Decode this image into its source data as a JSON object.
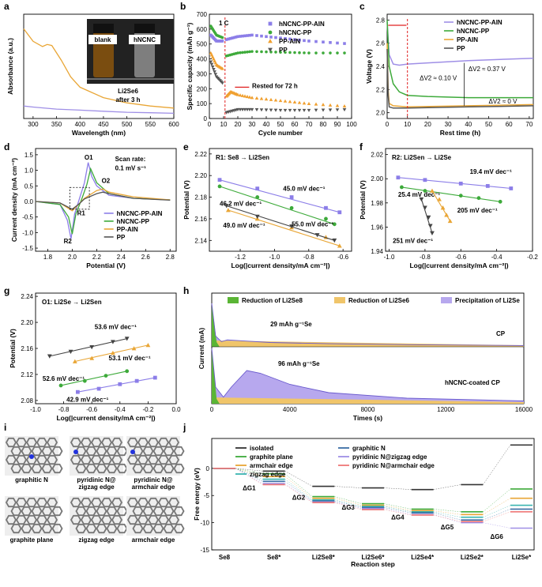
{
  "panel_labels": [
    "a",
    "b",
    "c",
    "d",
    "e",
    "f",
    "g",
    "h",
    "i",
    "j"
  ],
  "chart_data": [
    {
      "panel": "a",
      "type": "line",
      "xlabel": "Wavelength (nm)",
      "ylabel": "Absorbance (a.u.)",
      "xticks": [
        "300",
        "350",
        "400",
        "450",
        "500",
        "550",
        "600"
      ],
      "xlim": [
        280,
        600
      ],
      "inset_vials": [
        "blank",
        "hNCNC"
      ],
      "inset_caption": [
        "Li2Se6",
        "after 3 h"
      ],
      "series": [
        {
          "color": "#e9a636",
          "x": [
            280,
            300,
            320,
            330,
            340,
            360,
            380,
            400,
            450,
            500,
            550,
            600
          ],
          "y": [
            0.86,
            0.74,
            0.69,
            0.71,
            0.7,
            0.56,
            0.4,
            0.3,
            0.2,
            0.15,
            0.12,
            0.1
          ]
        },
        {
          "color": "#9f8fe6",
          "x": [
            280,
            300,
            350,
            400,
            450,
            500,
            550,
            600
          ],
          "y": [
            0.12,
            0.11,
            0.09,
            0.08,
            0.07,
            0.06,
            0.055,
            0.05
          ]
        }
      ]
    },
    {
      "panel": "b",
      "type": "scatter",
      "xlabel": "Cycle number",
      "ylabel": "Specific capacity (mAh g⁻¹)",
      "xticks": [
        "0",
        "10",
        "20",
        "30",
        "40",
        "50",
        "60",
        "70",
        "80",
        "90",
        "100"
      ],
      "yticks": [
        "0",
        "100",
        "200",
        "300",
        "400",
        "500",
        "600",
        "700"
      ],
      "xlim": [
        0,
        100
      ],
      "ylim": [
        0,
        700
      ],
      "rate": "1 C",
      "annotation": "Rested for 72 h",
      "legend": [
        "hNCNC-PP-AIN",
        "hNCNC-PP",
        "PP-AIN",
        "PP"
      ],
      "series": [
        {
          "name": "hNCNC-PP-AIN",
          "color": "#8c7ee8",
          "x": [
            1,
            5,
            10,
            12,
            20,
            30,
            50,
            70,
            100
          ],
          "y": [
            560,
            520,
            520,
            530,
            550,
            560,
            540,
            520,
            500
          ]
        },
        {
          "name": "hNCNC-PP",
          "color": "#3daa3a",
          "x": [
            1,
            5,
            10,
            12,
            20,
            30,
            50,
            70,
            100
          ],
          "y": [
            620,
            560,
            540,
            420,
            440,
            450,
            445,
            440,
            440
          ]
        },
        {
          "name": "PP-AIN",
          "color": "#f0a030",
          "x": [
            1,
            5,
            10,
            12,
            15,
            20,
            30,
            50,
            70,
            100
          ],
          "y": [
            440,
            360,
            330,
            150,
            180,
            160,
            140,
            120,
            100,
            80
          ]
        },
        {
          "name": "PP",
          "color": "#555555",
          "x": [
            1,
            5,
            10,
            12,
            20,
            30,
            50,
            70,
            100
          ],
          "y": [
            380,
            280,
            230,
            40,
            60,
            60,
            55,
            55,
            60
          ]
        }
      ]
    },
    {
      "panel": "c",
      "type": "line",
      "xlabel": "Rest time (h)",
      "ylabel": "Voltage (V)",
      "xticks": [
        "0",
        "10",
        "20",
        "30",
        "40",
        "50",
        "60",
        "70"
      ],
      "yticks": [
        "2.0",
        "2.2",
        "2.4",
        "2.6",
        "2.8"
      ],
      "xlim": [
        0,
        72
      ],
      "ylim": [
        1.95,
        2.85
      ],
      "annotations": [
        "ΔV2 ≈ 0.10 V",
        "ΔV2 ≈ 0.37 V",
        "ΔV2 ≈ 0 V"
      ],
      "legend": [
        "hNCNC-PP-AIN",
        "hNCNC-PP",
        "PP-AIN",
        "PP"
      ],
      "series": [
        {
          "name": "hNCNC-PP-AIN",
          "color": "#9f8fe6",
          "x": [
            0,
            1,
            3,
            6,
            10,
            20,
            40,
            72
          ],
          "y": [
            2.78,
            2.5,
            2.42,
            2.41,
            2.42,
            2.43,
            2.45,
            2.47
          ]
        },
        {
          "name": "hNCNC-PP",
          "color": "#3daa3a",
          "x": [
            0,
            1,
            3,
            6,
            10,
            20,
            40,
            72
          ],
          "y": [
            2.8,
            2.4,
            2.25,
            2.18,
            2.15,
            2.14,
            2.13,
            2.13
          ]
        },
        {
          "name": "PP-AIN",
          "color": "#e9a636",
          "x": [
            0,
            0.5,
            1,
            3,
            10,
            40,
            72
          ],
          "y": [
            2.6,
            2.2,
            2.08,
            2.06,
            2.05,
            2.06,
            2.07
          ]
        },
        {
          "name": "PP",
          "color": "#555555",
          "x": [
            0,
            0.5,
            1,
            3,
            10,
            40,
            72
          ],
          "y": [
            2.55,
            2.15,
            2.05,
            2.04,
            2.04,
            2.05,
            2.06
          ]
        }
      ]
    },
    {
      "panel": "d",
      "type": "line",
      "xlabel": "Potential (V)",
      "ylabel": "Current density (mA cm⁻²)",
      "xticks": [
        "1.8",
        "2.0",
        "2.2",
        "2.4",
        "2.6",
        "2.8"
      ],
      "yticks": [
        "-1.5",
        "-1.0",
        "-0.5",
        "0.0",
        "0.5",
        "1.0",
        "1.5"
      ],
      "xlim": [
        1.7,
        2.85
      ],
      "ylim": [
        -1.6,
        1.7
      ],
      "peak_labels": [
        "O1",
        "O2",
        "R1",
        "R2"
      ],
      "scan_rate": [
        "Scan rate:",
        "0.1 mV s⁻¹"
      ],
      "legend": [
        "hNCNC-PP-AIN",
        "hNCNC-PP",
        "PP-AIN",
        "PP"
      ],
      "series": [
        {
          "name": "hNCNC-PP-AIN",
          "color": "#8c7ee8",
          "x": [
            1.7,
            1.9,
            1.96,
            1.99,
            2.02,
            2.06,
            2.1,
            2.13,
            2.16,
            2.2,
            2.3,
            2.5,
            2.8
          ],
          "y": [
            0,
            -0.1,
            -0.6,
            -1.2,
            -0.4,
            0.1,
            0.6,
            1.25,
            0.8,
            0.5,
            0.2,
            0.1,
            0.05
          ]
        },
        {
          "name": "hNCNC-PP",
          "color": "#3daa3a",
          "x": [
            1.7,
            1.9,
            1.97,
            2.0,
            2.03,
            2.08,
            2.12,
            2.15,
            2.2,
            2.3,
            2.5,
            2.8
          ],
          "y": [
            0,
            -0.1,
            -0.5,
            -1.05,
            -0.4,
            0.1,
            0.55,
            1.05,
            0.6,
            0.25,
            0.1,
            0.05
          ]
        },
        {
          "name": "PP-AIN",
          "color": "#e9a636",
          "x": [
            1.7,
            1.9,
            2.0,
            2.05,
            2.1,
            2.2,
            2.25,
            2.3,
            2.5,
            2.8
          ],
          "y": [
            0,
            -0.05,
            -0.3,
            -0.1,
            0.1,
            0.35,
            0.4,
            0.3,
            0.15,
            0.05
          ]
        },
        {
          "name": "PP",
          "color": "#555555",
          "x": [
            1.7,
            1.9,
            2.0,
            2.05,
            2.1,
            2.2,
            2.25,
            2.3,
            2.5,
            2.8
          ],
          "y": [
            0,
            -0.05,
            -0.25,
            -0.1,
            0.08,
            0.25,
            0.3,
            0.25,
            0.1,
            0.04
          ]
        }
      ]
    },
    {
      "panel": "e",
      "type": "scatter",
      "title": "R1: Se8 → Li2Sen",
      "xlabel": "Log(|current density/mA cm⁻²|)",
      "ylabel": "Potential (V)",
      "xticks": [
        "-1.2",
        "-1.0",
        "-0.8",
        "-0.6"
      ],
      "yticks": [
        "2.14",
        "2.16",
        "2.18",
        "2.20",
        "2.22"
      ],
      "xlim": [
        -1.38,
        -0.55
      ],
      "ylim": [
        2.13,
        2.225
      ],
      "slope_labels": [
        "45.0 mV dec⁻¹",
        "46.2 mV dec⁻¹",
        "49.0 mV dec⁻¹",
        "55.0 mV dec⁻¹"
      ],
      "series": [
        {
          "name": "",
          "color": "#8c7ee8",
          "x": [
            -1.32,
            -1.1,
            -0.9,
            -0.7,
            -0.62
          ],
          "y": [
            2.196,
            2.188,
            2.18,
            2.17,
            2.166
          ]
        },
        {
          "name": "",
          "color": "#3daa3a",
          "x": [
            -1.32,
            -1.1,
            -0.9,
            -0.7,
            -0.65
          ],
          "y": [
            2.19,
            2.18,
            2.17,
            2.16,
            2.155
          ]
        },
        {
          "name": "",
          "color": "#e9a636",
          "x": [
            -1.27,
            -1.1,
            -0.9,
            -0.7,
            -0.62
          ],
          "y": [
            2.168,
            2.16,
            2.152,
            2.143,
            2.135
          ]
        },
        {
          "name": "",
          "color": "#444444",
          "x": [
            -1.28,
            -1.1,
            -0.9,
            -0.75,
            -0.65
          ],
          "y": [
            2.172,
            2.162,
            2.153,
            2.145,
            2.14
          ]
        }
      ]
    },
    {
      "panel": "f",
      "type": "scatter",
      "title": "R2: Li2Sen → Li2Se",
      "xlabel": "Log(|current density/mA cm⁻²|)",
      "ylabel": "Potential (V)",
      "xticks": [
        "-1.0",
        "-0.8",
        "-0.6",
        "-0.4",
        "-0.2"
      ],
      "yticks": [
        "1.94",
        "1.96",
        "1.98",
        "2.00",
        "2.02"
      ],
      "xlim": [
        -1.02,
        -0.2
      ],
      "ylim": [
        1.94,
        2.025
      ],
      "slope_labels": [
        "19.4 mV dec⁻¹",
        "25.4 mV dec⁻¹",
        "205 mV dec⁻¹",
        "251 mV dec⁻¹"
      ],
      "series": [
        {
          "name": "",
          "color": "#8c7ee8",
          "x": [
            -0.95,
            -0.8,
            -0.6,
            -0.45,
            -0.32
          ],
          "y": [
            2.001,
            1.999,
            1.996,
            1.994,
            1.992
          ]
        },
        {
          "name": "",
          "color": "#3daa3a",
          "x": [
            -0.93,
            -0.8,
            -0.6,
            -0.5,
            -0.38
          ],
          "y": [
            1.993,
            1.99,
            1.986,
            1.984,
            1.981
          ]
        },
        {
          "name": "",
          "color": "#e9a636",
          "x": [
            -0.76,
            -0.72,
            -0.7,
            -0.68,
            -0.66
          ],
          "y": [
            1.99,
            1.983,
            1.976,
            1.97,
            1.965
          ]
        },
        {
          "name": "",
          "color": "#444444",
          "x": [
            -0.82,
            -0.8,
            -0.78,
            -0.77,
            -0.76
          ],
          "y": [
            1.983,
            1.976,
            1.968,
            1.961,
            1.955
          ]
        }
      ]
    },
    {
      "panel": "g",
      "type": "scatter",
      "title": "O1: Li2Se → Li2Sen",
      "xlabel": "Log(|current density/mA cm⁻²|)",
      "ylabel": "Potential (V)",
      "xticks": [
        "-1.0",
        "-0.8",
        "-0.6",
        "-0.4",
        "-0.2",
        "0.0"
      ],
      "yticks": [
        "2.08",
        "2.12",
        "2.16",
        "2.20",
        "2.24"
      ],
      "xlim": [
        -1.0,
        0.0
      ],
      "ylim": [
        2.075,
        2.245
      ],
      "slope_labels": [
        "53.6 mV dec⁻¹",
        "53.1 mV dec⁻¹",
        "52.6 mV dec⁻¹",
        "42.9 mV dec⁻¹"
      ],
      "series": [
        {
          "name": "",
          "color": "#444444",
          "x": [
            -0.9,
            -0.75,
            -0.6,
            -0.45,
            -0.35
          ],
          "y": [
            2.148,
            2.155,
            2.162,
            2.17,
            2.175
          ]
        },
        {
          "name": "",
          "color": "#e9a636",
          "x": [
            -0.72,
            -0.6,
            -0.45,
            -0.3,
            -0.2
          ],
          "y": [
            2.14,
            2.145,
            2.153,
            2.16,
            2.165
          ]
        },
        {
          "name": "",
          "color": "#3daa3a",
          "x": [
            -0.82,
            -0.65,
            -0.5,
            -0.35
          ],
          "y": [
            2.103,
            2.11,
            2.118,
            2.125
          ]
        },
        {
          "name": "",
          "color": "#8c7ee8",
          "x": [
            -0.7,
            -0.55,
            -0.4,
            -0.28,
            -0.15
          ],
          "y": [
            2.093,
            2.098,
            2.105,
            2.11,
            2.115
          ]
        }
      ]
    },
    {
      "panel": "h",
      "type": "area",
      "xlabel": "Times (s)",
      "ylabel": "Current (mA)",
      "xticks": [
        "0",
        "4000",
        "8000",
        "12000",
        "16000"
      ],
      "xlim": [
        0,
        16000
      ],
      "legend": [
        "Reduction of Li2Se8",
        "Reduction of Li2Se6",
        "Precipitation of Li2Se"
      ],
      "top_label": "CP",
      "top_capacity": "29 mAh g⁻¹Se",
      "bottom_label": "hNCNC-coated CP",
      "bottom_capacity": "96 mAh g⁻¹Se",
      "top_trace": {
        "x": [
          0,
          200,
          500,
          800,
          1500,
          3000,
          6000,
          10000,
          16000
        ],
        "y": [
          1.0,
          0.25,
          0.12,
          0.16,
          0.14,
          0.1,
          0.07,
          0.05,
          0.03
        ]
      },
      "bottom_trace": {
        "x": [
          0,
          200,
          600,
          1000,
          1800,
          2500,
          4000,
          6000,
          10000,
          16000
        ],
        "y": [
          1.0,
          0.3,
          0.12,
          0.3,
          0.6,
          0.55,
          0.35,
          0.2,
          0.1,
          0.05
        ]
      }
    },
    {
      "panel": "j",
      "type": "line",
      "xlabel": "Reaction step",
      "ylabel": "Free energy (eV)",
      "categories": [
        "Se8",
        "Se8*",
        "Li2Se8*",
        "Li2Se6*",
        "Li2Se4*",
        "Li2Se2*",
        "Li2Se*"
      ],
      "yticks": [
        "0",
        "-5",
        "-10",
        "-15"
      ],
      "ylim": [
        -15,
        5.5
      ],
      "step_labels": [
        "ΔG1",
        "ΔG2",
        "ΔG3",
        "ΔG4",
        "ΔG5",
        "ΔG6"
      ],
      "legend": [
        "isolated",
        "graphite plane",
        "armchair edge",
        "zigzag edge",
        "graphitic N",
        "pyridinic N@zigzag edge",
        "pyridinic N@armchair edge"
      ],
      "series": [
        {
          "name": "isolated",
          "color": "#333333",
          "values": [
            0,
            -0.5,
            -3.3,
            -3.6,
            -3.9,
            -3.0,
            4.3
          ]
        },
        {
          "name": "graphite plane",
          "color": "#3daa3a",
          "values": [
            0,
            -1.0,
            -5.2,
            -6.5,
            -7.5,
            -8.0,
            -3.8
          ]
        },
        {
          "name": "armchair edge",
          "color": "#e9a636",
          "values": [
            0,
            -1.5,
            -5.5,
            -6.8,
            -7.8,
            -8.5,
            -5.5
          ]
        },
        {
          "name": "zigzag edge",
          "color": "#3ab5b0",
          "values": [
            0,
            -2.0,
            -5.8,
            -7.0,
            -8.0,
            -9.0,
            -6.8
          ]
        },
        {
          "name": "graphitic N",
          "color": "#3a6ea5",
          "values": [
            0,
            -2.4,
            -6.0,
            -7.2,
            -8.2,
            -9.5,
            -7.5
          ]
        },
        {
          "name": "pyridinic N@zigzag edge",
          "color": "#9f8fe6",
          "values": [
            0,
            -2.8,
            -6.2,
            -7.4,
            -8.5,
            -10.0,
            -11.0
          ]
        },
        {
          "name": "pyridinic N@armchair edge",
          "color": "#ee7777",
          "values": [
            0,
            -3.0,
            -6.3,
            -7.6,
            -8.6,
            -9.8,
            -8.0
          ]
        }
      ]
    }
  ],
  "panel_i": {
    "structures": [
      "graphitic N",
      "pyridinic N@ zigzag edge",
      "pyridinic N@ armchair edge",
      "graphite plane",
      "zigzag edge",
      "armchair edge"
    ]
  }
}
